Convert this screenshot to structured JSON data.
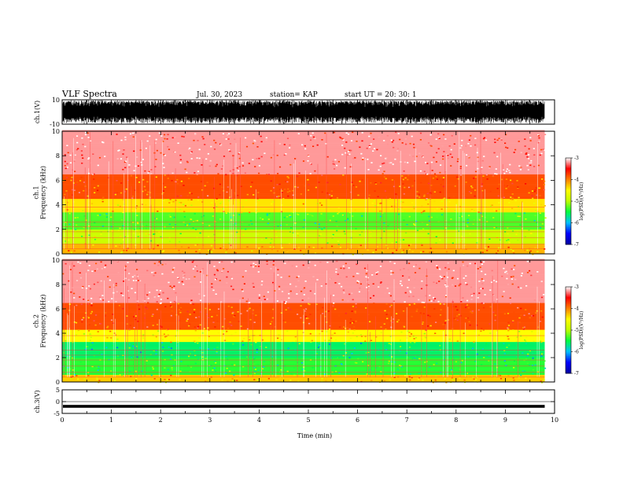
{
  "header": {
    "title": "VLF Spectra",
    "date": "Jul. 30, 2023",
    "station": "station= KAP",
    "start": "start UT =   20: 30: 1"
  },
  "chart_data": [
    {
      "type": "line",
      "panel": "ch1-waveform",
      "ylabel": "ch.1(V)",
      "ylim": [
        -10,
        10
      ],
      "yticks": [
        "10",
        "-10"
      ],
      "xlim": [
        0,
        10
      ],
      "note_values": "dense noise trace spanning most of -10 to 10 V over 0 to 9.8 min"
    },
    {
      "type": "heatmap",
      "panel": "ch1-spectrogram",
      "ylabel": "ch.1\nFrequency (kHz)",
      "ylim": [
        0,
        10
      ],
      "yticks": [
        "0",
        "2",
        "4",
        "6",
        "8",
        "10"
      ],
      "xlim": [
        0,
        10
      ],
      "x_end": 9.8,
      "color_scale_label": "log(PSD)(V²/Hz)",
      "colorbar_ticks": [
        "-3",
        "-4",
        "-5",
        "-6",
        "-7"
      ],
      "colorbar_range": [
        -7,
        -3
      ],
      "approx_band_levels": [
        {
          "f_khz": [
            0,
            0.8
          ],
          "level": -4.2
        },
        {
          "f_khz": [
            0.8,
            2.0
          ],
          "level": -4.9
        },
        {
          "f_khz": [
            2.0,
            3.4
          ],
          "level": -5.3
        },
        {
          "f_khz": [
            3.4,
            4.5
          ],
          "level": -4.4
        },
        {
          "f_khz": [
            4.5,
            6.5
          ],
          "level": -3.8
        },
        {
          "f_khz": [
            6.5,
            10
          ],
          "level": -3.2
        }
      ]
    },
    {
      "type": "heatmap",
      "panel": "ch2-spectrogram",
      "ylabel": "ch.2\nFrequency (kHz)",
      "ylim": [
        0,
        10
      ],
      "yticks": [
        "0",
        "2",
        "4",
        "6",
        "8",
        "10"
      ],
      "xlim": [
        0,
        10
      ],
      "x_end": 9.8,
      "color_scale_label": "log(PSD)(V²/Hz)",
      "colorbar_ticks": [
        "-3",
        "-4",
        "-5",
        "-6",
        "-7"
      ],
      "colorbar_range": [
        -7,
        -3
      ],
      "approx_band_levels": [
        {
          "f_khz": [
            0,
            0.6
          ],
          "level": -4.3
        },
        {
          "f_khz": [
            0.6,
            2.0
          ],
          "level": -5.4
        },
        {
          "f_khz": [
            2.0,
            3.3
          ],
          "level": -5.6
        },
        {
          "f_khz": [
            3.3,
            4.3
          ],
          "level": -4.5
        },
        {
          "f_khz": [
            4.3,
            6.5
          ],
          "level": -3.8
        },
        {
          "f_khz": [
            6.5,
            10
          ],
          "level": -3.2
        }
      ]
    },
    {
      "type": "line",
      "panel": "ch3-waveform",
      "ylabel": "ch.3(V)",
      "ylim": [
        -5,
        5
      ],
      "yticks": [
        "5",
        "0",
        "-5"
      ],
      "xlim": [
        0,
        10
      ],
      "note_values": "near-constant band around -2 V over 0 to 9.8 min"
    }
  ],
  "x_axis": {
    "label": "Time (min)",
    "ticks": [
      "0",
      "1",
      "2",
      "3",
      "4",
      "5",
      "6",
      "7",
      "8",
      "9",
      "10"
    ]
  },
  "colors": {
    "cmap": [
      "#0000a0",
      "#0000ff",
      "#00c0ff",
      "#00ff40",
      "#c0ff00",
      "#ffff00",
      "#ff8000",
      "#ff0000",
      "#ffffff"
    ]
  }
}
